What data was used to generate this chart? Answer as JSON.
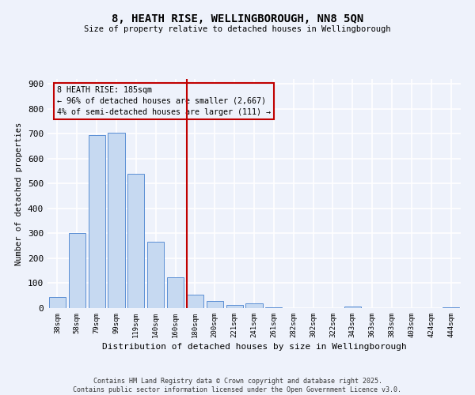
{
  "title": "8, HEATH RISE, WELLINGBOROUGH, NN8 5QN",
  "subtitle": "Size of property relative to detached houses in Wellingborough",
  "xlabel": "Distribution of detached houses by size in Wellingborough",
  "ylabel": "Number of detached properties",
  "categories": [
    "38sqm",
    "58sqm",
    "79sqm",
    "99sqm",
    "119sqm",
    "140sqm",
    "160sqm",
    "180sqm",
    "200sqm",
    "221sqm",
    "241sqm",
    "261sqm",
    "282sqm",
    "302sqm",
    "322sqm",
    "343sqm",
    "363sqm",
    "383sqm",
    "403sqm",
    "424sqm",
    "444sqm"
  ],
  "values": [
    45,
    300,
    695,
    705,
    540,
    265,
    125,
    55,
    27,
    12,
    18,
    2,
    1,
    0,
    0,
    7,
    0,
    0,
    0,
    0,
    3
  ],
  "bar_color": "#c6d9f1",
  "bar_edge_color": "#5b8fd4",
  "reference_line_color": "#c00000",
  "annotation_text": "8 HEATH RISE: 185sqm\n← 96% of detached houses are smaller (2,667)\n4% of semi-detached houses are larger (111) →",
  "annotation_box_color": "#c00000",
  "annotation_text_color": "#000000",
  "ylim": [
    0,
    920
  ],
  "yticks": [
    0,
    100,
    200,
    300,
    400,
    500,
    600,
    700,
    800,
    900
  ],
  "footer_text": "Contains HM Land Registry data © Crown copyright and database right 2025.\nContains public sector information licensed under the Open Government Licence v3.0.",
  "background_color": "#eef2fb",
  "grid_color": "#ffffff",
  "figsize": [
    6.0,
    5.0
  ],
  "dpi": 100
}
